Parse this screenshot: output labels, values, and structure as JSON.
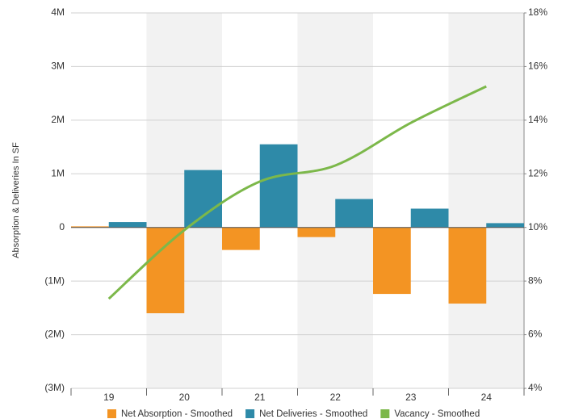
{
  "chart_data": {
    "type": "bar-line",
    "y_label": "Absorption & Deliveries In SF",
    "categories": [
      "19",
      "20",
      "21",
      "22",
      "23",
      "24"
    ],
    "series": [
      {
        "name": "Net Absorption - Smoothed",
        "type": "bar",
        "color": "#f39423",
        "values": [
          20000,
          -1600000,
          -420000,
          -180000,
          -1240000,
          -1420000
        ]
      },
      {
        "name": "Net Deliveries - Smoothed",
        "type": "bar",
        "color": "#2e8aa8",
        "values": [
          100000,
          1070000,
          1550000,
          530000,
          350000,
          80000
        ]
      },
      {
        "name": "Vacancy - Smoothed",
        "type": "line",
        "axis": "y2",
        "color": "#7cb84a",
        "values": [
          7.34,
          9.9,
          11.71,
          12.31,
          13.9,
          15.26
        ]
      }
    ],
    "ylim": [
      -3000000,
      4000000
    ],
    "yticks": [
      {
        "value": -3000000,
        "label": "(3M)"
      },
      {
        "value": -2000000,
        "label": "(2M)"
      },
      {
        "value": -1000000,
        "label": "(1M)"
      },
      0,
      {
        "value": 1000000,
        "label": "1M"
      },
      {
        "value": 2000000,
        "label": "2M"
      },
      {
        "value": 3000000,
        "label": "3M"
      },
      {
        "value": 4000000,
        "label": "4M"
      }
    ],
    "y2lim": [
      4,
      18
    ],
    "y2ticks": [
      {
        "value": 4,
        "label": "4%"
      },
      {
        "value": 6,
        "label": "6%"
      },
      {
        "value": 8,
        "label": "8%"
      },
      {
        "value": 10,
        "label": "10%"
      },
      {
        "value": 12,
        "label": "12%"
      },
      {
        "value": 14,
        "label": "14%"
      },
      {
        "value": 16,
        "label": "16%"
      },
      {
        "value": 18,
        "label": "18%"
      }
    ],
    "grid": true,
    "band_shading": "#f2f2f2",
    "legend": "bottom"
  }
}
